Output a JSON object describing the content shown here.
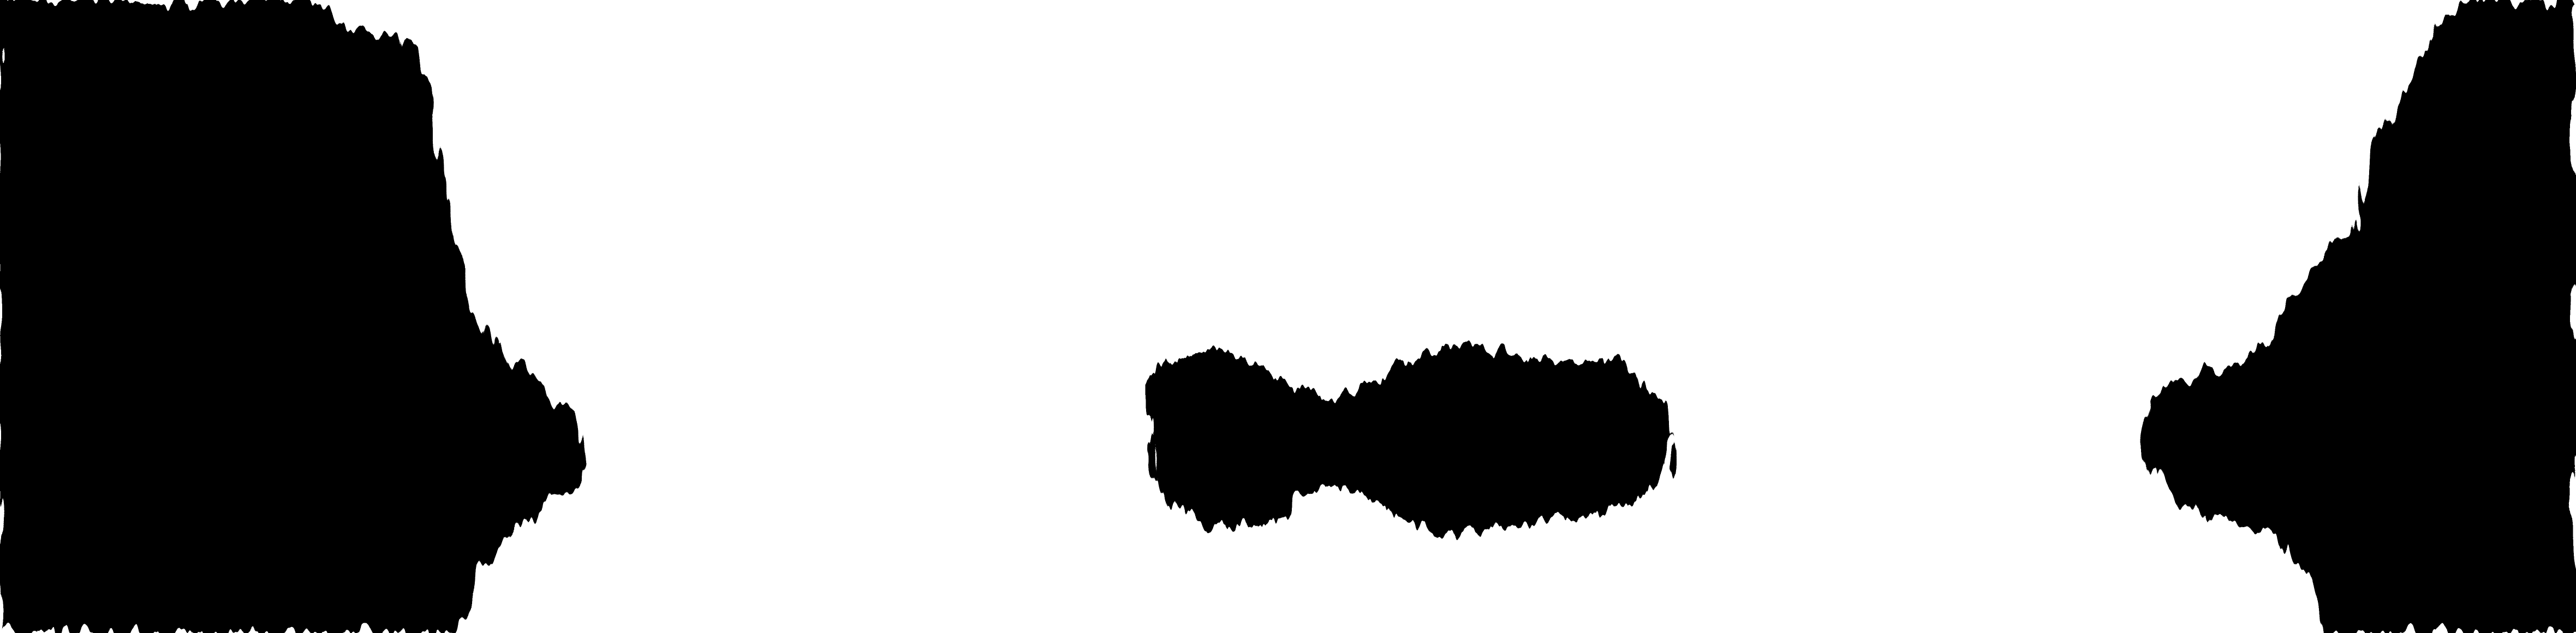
{
  "image": {
    "description_colors": {
      "ink": "#000000",
      "paper": "#ffffff"
    },
    "regions": [
      {
        "name": "left-ink-mass",
        "fill": "ink"
      },
      {
        "name": "center-ink-blot",
        "fill": "ink"
      },
      {
        "name": "right-ink-mass",
        "fill": "ink"
      }
    ]
  }
}
